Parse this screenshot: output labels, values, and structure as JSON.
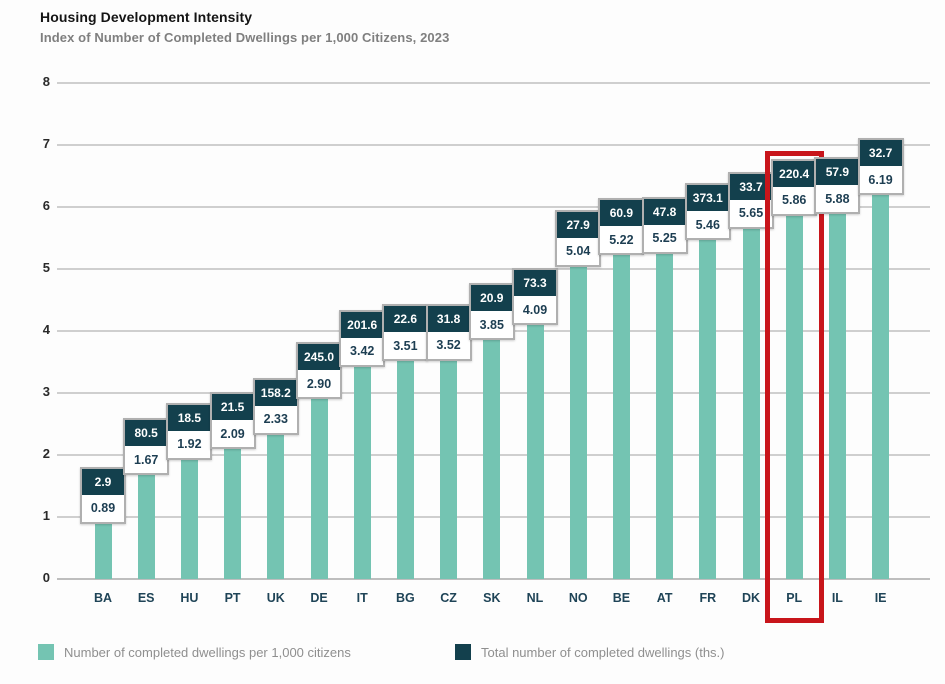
{
  "title": "Housing Development Intensity",
  "subtitle": "Index of Number of Completed Dwellings per 1,000 Citizens, 2023",
  "chart_data": {
    "type": "bar",
    "categories": [
      "BA",
      "ES",
      "HU",
      "PT",
      "UK",
      "DE",
      "IT",
      "BG",
      "CZ",
      "SK",
      "NL",
      "NO",
      "BE",
      "AT",
      "FR",
      "DK",
      "PL",
      "IL",
      "IE"
    ],
    "series": [
      {
        "name": "Number of completed dwellings per 1,000 citizens",
        "values": [
          0.89,
          1.67,
          1.92,
          2.09,
          2.33,
          2.9,
          3.42,
          3.51,
          3.52,
          3.85,
          4.09,
          5.04,
          5.22,
          5.25,
          5.46,
          5.65,
          5.86,
          5.88,
          6.19
        ],
        "labels": [
          "0.89",
          "1.67",
          "1.92",
          "2.09",
          "2.33",
          "2.90",
          "3.42",
          "3.51",
          "3.52",
          "3.85",
          "4.09",
          "5.04",
          "5.22",
          "5.25",
          "5.46",
          "5.65",
          "5.86",
          "5.88",
          "6.19"
        ]
      },
      {
        "name": "Total number of completed dwellings (ths.)",
        "values": [
          2.9,
          80.5,
          18.5,
          21.5,
          158.2,
          245.0,
          201.6,
          22.6,
          31.8,
          20.9,
          73.3,
          27.9,
          60.9,
          47.8,
          373.1,
          33.7,
          220.4,
          57.9,
          32.7
        ],
        "labels": [
          "2.9",
          "80.5",
          "18.5",
          "21.5",
          "158.2",
          "245.0",
          "201.6",
          "22.6",
          "31.8",
          "20.9",
          "73.3",
          "27.9",
          "60.9",
          "47.8",
          "373.1",
          "33.7",
          "220.4",
          "57.9",
          "32.7"
        ]
      }
    ],
    "ylim": [
      0,
      8
    ],
    "ytick_step": 1,
    "grid": true,
    "legend_position": "bottom",
    "highlighted_category": "PL"
  },
  "colors": {
    "bar": "#74c4b2",
    "total_box_bg": "#13404d",
    "total_box_text": "#ffffff",
    "value_box_bg": "#ffffff",
    "value_box_text": "#1d3e52",
    "card_border": "#b0b0b0",
    "grid_line": "#c7c7c7",
    "axis_line": "#b3b3b3",
    "ytick_text": "#2a2a2a",
    "xtick_text": "#1f4457",
    "highlight_border": "#c8151b",
    "title_text": "#141414",
    "subtitle_text": "#7f7f7f",
    "legend_text": "#8f8f8f"
  }
}
